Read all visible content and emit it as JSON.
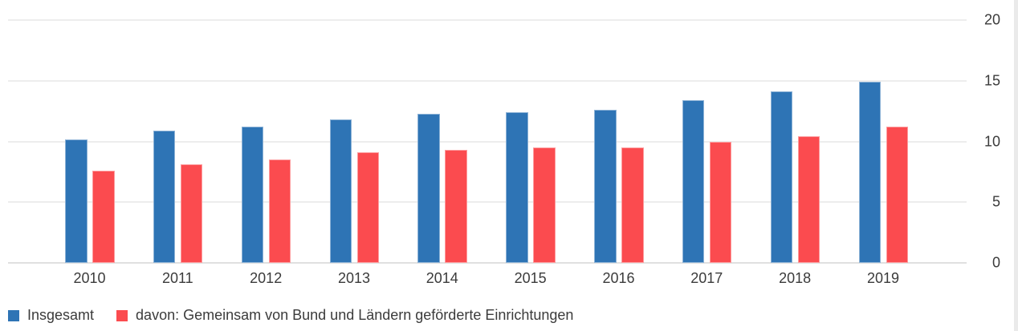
{
  "chart_data": {
    "type": "bar",
    "title": "",
    "xlabel": "",
    "ylabel": "",
    "categories": [
      "2010",
      "2011",
      "2012",
      "2013",
      "2014",
      "2015",
      "2016",
      "2017",
      "2018",
      "2019"
    ],
    "series": [
      {
        "name": "Insgesamt",
        "color": "#2e74b5",
        "values": [
          10.2,
          10.9,
          11.2,
          11.8,
          12.3,
          12.4,
          12.6,
          13.4,
          14.1,
          14.9
        ]
      },
      {
        "name": "davon: Gemeinsam von Bund und Ländern geförderte Einrichtungen",
        "color": "#fb4b4f",
        "values": [
          7.6,
          8.1,
          8.5,
          9.1,
          9.3,
          9.5,
          9.5,
          10.0,
          10.4,
          11.2
        ]
      }
    ],
    "ylim": [
      0,
      20
    ],
    "yticks": [
      0,
      5,
      10,
      15,
      20
    ],
    "ytick_side": "right",
    "grid": true,
    "legend_position": "bottom-left"
  },
  "legend": {
    "items": [
      {
        "label": "Insgesamt",
        "color": "#2e74b5"
      },
      {
        "label": "davon: Gemeinsam von Bund und Ländern geförderte Einrichtungen",
        "color": "#fb4b4f"
      }
    ]
  },
  "colors": {
    "series_insgesamt": "#2e74b5",
    "series_davon": "#fb4b4f",
    "gridline": "#ededed",
    "baseline": "#e0e0e0",
    "text": "#3b3b3b",
    "background": "#ffffff"
  }
}
